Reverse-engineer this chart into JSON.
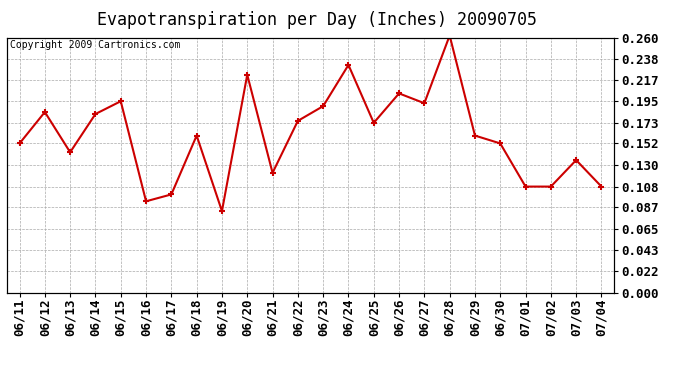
{
  "title": "Evapotranspiration per Day (Inches) 20090705",
  "copyright": "Copyright 2009 Cartronics.com",
  "dates": [
    "06/11",
    "06/12",
    "06/13",
    "06/14",
    "06/15",
    "06/16",
    "06/17",
    "06/18",
    "06/19",
    "06/20",
    "06/21",
    "06/22",
    "06/23",
    "06/24",
    "06/25",
    "06/26",
    "06/27",
    "06/28",
    "06/29",
    "06/30",
    "07/01",
    "07/02",
    "07/03",
    "07/04"
  ],
  "values": [
    0.152,
    0.184,
    0.143,
    0.182,
    0.195,
    0.093,
    0.1,
    0.16,
    0.083,
    0.222,
    0.122,
    0.175,
    0.19,
    0.232,
    0.173,
    0.203,
    0.193,
    0.262,
    0.16,
    0.152,
    0.108,
    0.108,
    0.135,
    0.108
  ],
  "line_color": "#cc0000",
  "marker": "+",
  "marker_size": 5,
  "marker_linewidth": 1.5,
  "linewidth": 1.5,
  "background_color": "#ffffff",
  "grid_color": "#aaaaaa",
  "grid_linestyle": "--",
  "ylim": [
    0.0,
    0.26
  ],
  "yticks": [
    0.0,
    0.022,
    0.043,
    0.065,
    0.087,
    0.108,
    0.13,
    0.152,
    0.173,
    0.195,
    0.217,
    0.238,
    0.26
  ],
  "title_fontsize": 12,
  "copyright_fontsize": 7,
  "tick_fontsize": 9,
  "tick_fontweight": "bold",
  "border_color": "#000000"
}
